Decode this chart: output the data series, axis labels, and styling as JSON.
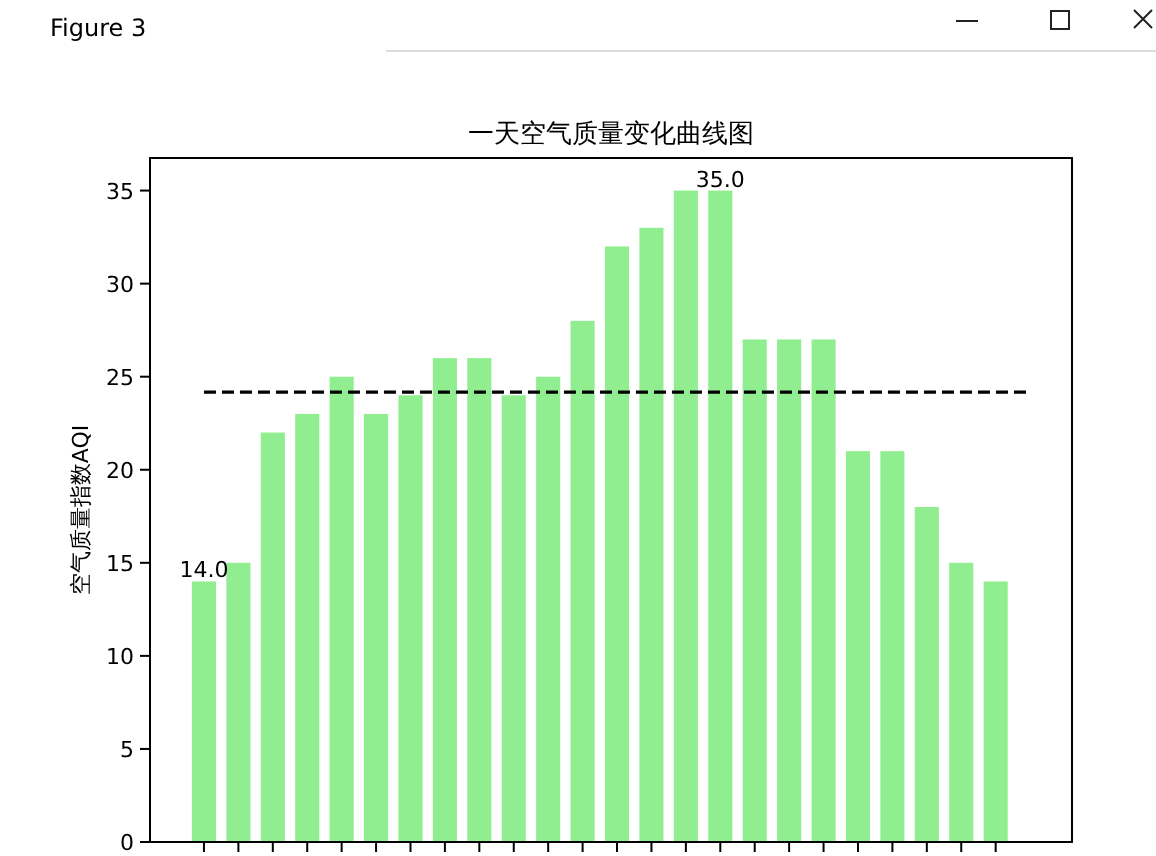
{
  "chart_data": {
    "type": "bar",
    "title": "一天空气质量变化曲线图",
    "ylabel": "空气质量指数AQI",
    "annotations": [
      "Figure 3"
    ],
    "categories": [
      null,
      null,
      null,
      null,
      null,
      null,
      null,
      null,
      null,
      null,
      null,
      null,
      null,
      null,
      null,
      null,
      null,
      null,
      null,
      null,
      null,
      null,
      null,
      null
    ],
    "values": [
      14,
      15,
      22,
      23,
      25,
      23,
      24,
      26,
      26,
      24,
      25,
      28,
      32,
      33,
      35,
      35,
      27,
      27,
      27,
      21,
      21,
      18,
      15,
      14
    ],
    "color": "#90ee90",
    "value_labels": [
      "14.0",
      null,
      null,
      null,
      null,
      null,
      null,
      null,
      null,
      null,
      null,
      null,
      null,
      null,
      null,
      "35.0",
      null,
      null,
      null,
      null,
      null,
      null,
      null,
      null
    ],
    "ylim": [
      0,
      36.75
    ],
    "yticks": [
      0,
      5,
      10,
      15,
      20,
      25,
      30,
      35
    ],
    "ref_lines": [
      {
        "axis": "y",
        "value": 24.17,
        "color": "#000000",
        "line_style": "dashed"
      }
    ]
  }
}
